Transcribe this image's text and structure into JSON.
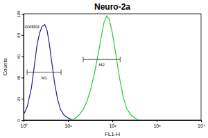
{
  "chart_data": {
    "type": "line",
    "title": "Neuro-2a",
    "x_label": "FL1-H",
    "y_label": "Counts",
    "log": "x",
    "xlim": [
      1,
      10000
    ],
    "xticks": [
      {
        "value": 1,
        "label": "10⁰"
      },
      {
        "value": 10,
        "label": "10¹"
      },
      {
        "value": 100,
        "label": "10²"
      },
      {
        "value": 1000,
        "label": "10³"
      },
      {
        "value": 10000,
        "label": "10⁴"
      }
    ],
    "ylim": [
      0,
      100
    ],
    "yticks": [
      0,
      20,
      40,
      60,
      80,
      100
    ],
    "series": [
      {
        "name": "control",
        "color": "#1f1f8f",
        "x": [
          1,
          1.2,
          1.5,
          1.8,
          2,
          2.3,
          2.6,
          3,
          3.4,
          3.8,
          4.3,
          5,
          5.8,
          6.8,
          8,
          10,
          13
        ],
        "values": [
          5,
          12,
          30,
          55,
          70,
          82,
          88,
          90,
          84,
          72,
          55,
          35,
          20,
          10,
          5,
          2,
          0
        ]
      },
      {
        "color": "#22cc33",
        "x": [
          12,
          15,
          18,
          22,
          27,
          33,
          40,
          48,
          56,
          65,
          75,
          85,
          100,
          120,
          145,
          175,
          210,
          260,
          320,
          400
        ],
        "values": [
          0,
          2,
          5,
          10,
          18,
          30,
          45,
          62,
          78,
          92,
          98,
          95,
          82,
          62,
          40,
          22,
          11,
          5,
          2,
          0
        ]
      }
    ],
    "gates": [
      {
        "label": "M1",
        "x": [
          1.2,
          7
        ],
        "y": 45
      },
      {
        "label": "M2",
        "x": [
          22,
          150
        ],
        "y": 57
      }
    ]
  }
}
